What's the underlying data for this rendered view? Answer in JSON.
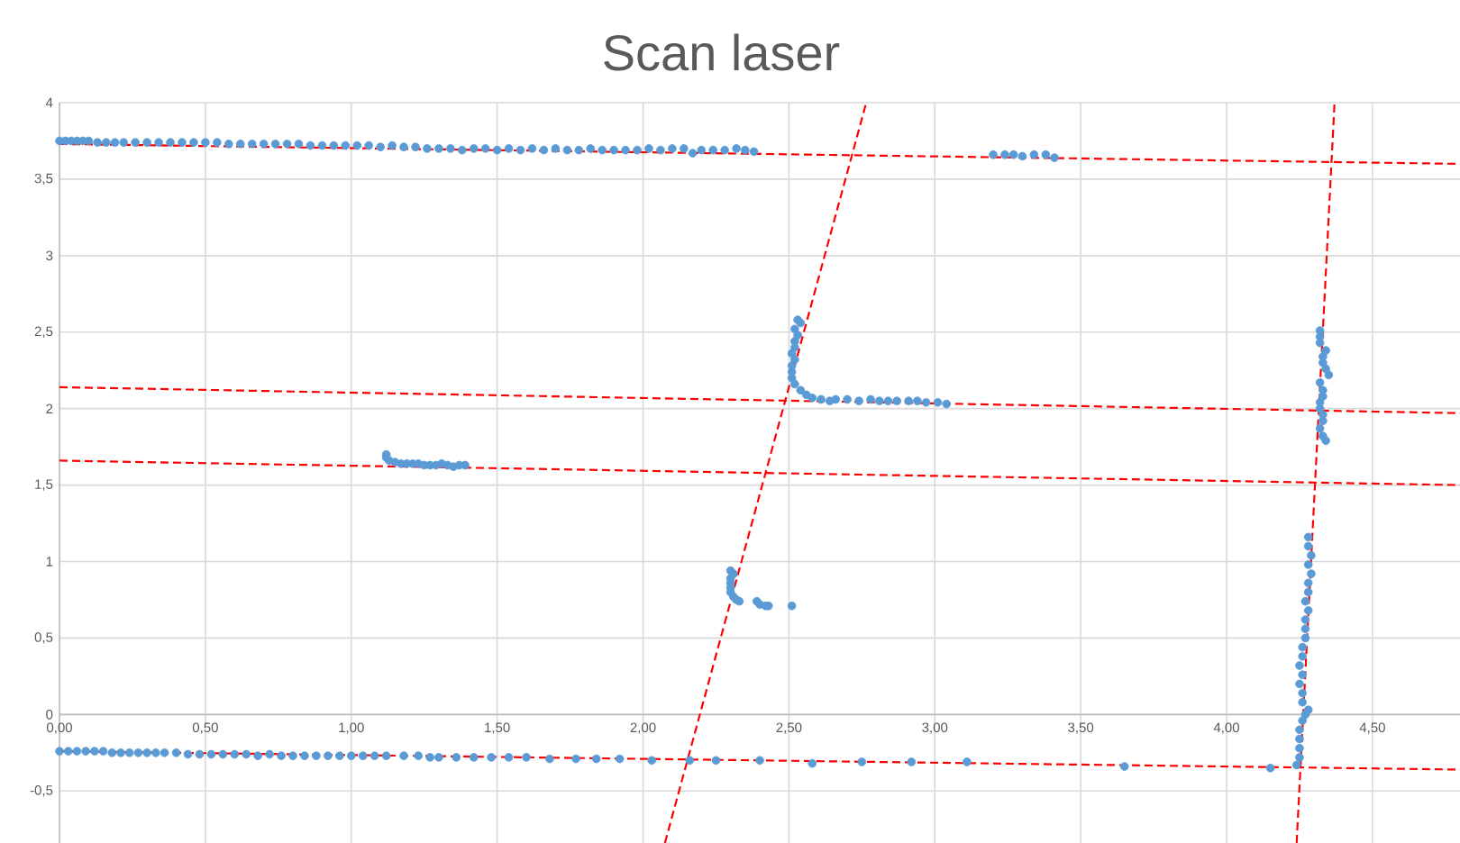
{
  "chart_data": {
    "type": "scatter",
    "title": "Scan laser",
    "xlim": [
      0,
      4.8
    ],
    "ylim": [
      -0.84,
      4
    ],
    "xticks": [
      {
        "value": 0,
        "label": "0,00"
      },
      {
        "value": 0.5,
        "label": "0,50"
      },
      {
        "value": 1,
        "label": "1,00"
      },
      {
        "value": 1.5,
        "label": "1,50"
      },
      {
        "value": 2,
        "label": "2,00"
      },
      {
        "value": 2.5,
        "label": "2,50"
      },
      {
        "value": 3,
        "label": "3,00"
      },
      {
        "value": 3.5,
        "label": "3,50"
      },
      {
        "value": 4,
        "label": "4,00"
      },
      {
        "value": 4.5,
        "label": "4,50"
      }
    ],
    "yticks": [
      {
        "value": -0.5,
        "label": "-0,5"
      },
      0,
      {
        "value": 0.5,
        "label": "0,5"
      },
      1,
      {
        "value": 1.5,
        "label": "1,5"
      },
      2,
      {
        "value": 2.5,
        "label": "2,5"
      },
      3,
      {
        "value": 3.5,
        "label": "3,5"
      },
      4
    ],
    "grid": true,
    "series": [
      {
        "color": "#5b9bd5",
        "marker": "circle",
        "x": [
          0.0,
          0.02,
          0.04,
          0.06,
          0.08,
          0.1,
          0.13,
          0.16,
          0.19,
          0.22,
          0.26,
          0.3,
          0.34,
          0.38,
          0.42,
          0.46,
          0.5,
          0.54,
          0.58,
          0.62,
          0.66,
          0.7,
          0.74,
          0.78,
          0.82,
          0.86,
          0.9,
          0.94,
          0.98,
          1.02,
          1.06,
          1.1,
          1.14,
          1.18,
          1.22,
          1.26,
          1.3,
          1.34,
          1.38,
          1.42,
          1.46,
          1.5,
          1.54,
          1.58,
          1.62,
          1.66,
          1.7,
          1.74,
          1.78,
          1.82,
          1.86,
          1.9,
          1.94,
          1.98,
          2.02,
          2.06,
          2.1,
          2.14,
          2.17,
          2.2,
          2.24,
          2.28,
          2.32,
          2.35,
          2.38,
          3.2,
          3.24,
          3.27,
          3.3,
          3.34,
          3.38,
          3.41,
          1.12,
          1.12,
          1.13,
          1.15,
          1.17,
          1.19,
          1.21,
          1.23,
          1.25,
          1.27,
          1.29,
          1.31,
          1.33,
          1.35,
          1.37,
          1.39,
          2.53,
          2.54,
          2.52,
          2.53,
          2.52,
          2.52,
          2.51,
          2.52,
          2.51,
          2.51,
          2.51,
          2.52,
          2.54,
          2.56,
          2.58,
          2.61,
          2.64,
          2.66,
          2.7,
          2.74,
          2.78,
          2.81,
          2.84,
          2.87,
          2.91,
          2.94,
          2.97,
          3.01,
          3.04,
          4.32,
          4.32,
          4.32,
          4.34,
          4.33,
          4.33,
          4.34,
          4.35,
          4.32,
          4.33,
          4.33,
          4.32,
          4.32,
          4.33,
          4.33,
          4.32,
          4.33,
          4.34,
          2.3,
          2.31,
          2.3,
          2.3,
          2.3,
          2.3,
          2.31,
          2.32,
          2.33,
          2.39,
          2.4,
          2.42,
          2.43,
          2.51,
          0.0,
          0.03,
          0.06,
          0.09,
          0.12,
          0.15,
          0.18,
          0.21,
          0.24,
          0.27,
          0.3,
          0.33,
          0.36,
          0.4,
          0.44,
          0.48,
          0.52,
          0.56,
          0.6,
          0.64,
          0.68,
          0.72,
          0.76,
          0.8,
          0.84,
          0.88,
          0.92,
          0.96,
          1.0,
          1.04,
          1.08,
          1.12,
          1.18,
          1.23,
          1.27,
          1.3,
          1.36,
          1.42,
          1.48,
          1.54,
          1.6,
          1.68,
          1.77,
          1.84,
          1.92,
          2.03,
          2.16,
          2.25,
          2.4,
          2.58,
          2.75,
          2.92,
          3.11,
          3.65,
          4.15,
          4.24,
          4.25,
          4.25,
          4.25,
          4.25,
          4.26,
          4.27,
          4.28,
          4.26,
          4.26,
          4.25,
          4.26,
          4.25,
          4.26,
          4.26,
          4.27,
          4.27,
          4.27,
          4.28,
          4.27,
          4.28,
          4.28,
          4.29,
          4.28,
          4.29,
          4.28,
          4.28
        ],
        "values": [
          3.75,
          3.75,
          3.75,
          3.75,
          3.75,
          3.75,
          3.74,
          3.74,
          3.74,
          3.74,
          3.74,
          3.74,
          3.74,
          3.74,
          3.74,
          3.74,
          3.74,
          3.74,
          3.73,
          3.73,
          3.73,
          3.73,
          3.73,
          3.73,
          3.73,
          3.72,
          3.72,
          3.72,
          3.72,
          3.72,
          3.72,
          3.71,
          3.72,
          3.71,
          3.71,
          3.7,
          3.7,
          3.7,
          3.69,
          3.7,
          3.7,
          3.69,
          3.7,
          3.69,
          3.7,
          3.69,
          3.7,
          3.69,
          3.69,
          3.7,
          3.69,
          3.69,
          3.69,
          3.69,
          3.7,
          3.69,
          3.7,
          3.7,
          3.67,
          3.69,
          3.69,
          3.69,
          3.7,
          3.69,
          3.68,
          3.66,
          3.66,
          3.66,
          3.65,
          3.66,
          3.66,
          3.64,
          1.7,
          1.68,
          1.66,
          1.65,
          1.64,
          1.64,
          1.64,
          1.64,
          1.63,
          1.63,
          1.63,
          1.64,
          1.63,
          1.62,
          1.63,
          1.63,
          2.58,
          2.56,
          2.52,
          2.48,
          2.44,
          2.4,
          2.36,
          2.32,
          2.28,
          2.24,
          2.2,
          2.16,
          2.12,
          2.09,
          2.07,
          2.06,
          2.05,
          2.06,
          2.06,
          2.05,
          2.06,
          2.05,
          2.05,
          2.05,
          2.05,
          2.05,
          2.04,
          2.04,
          2.03,
          2.51,
          2.47,
          2.43,
          2.38,
          2.34,
          2.3,
          2.26,
          2.22,
          2.17,
          2.12,
          2.08,
          2.04,
          2.0,
          1.96,
          1.92,
          1.87,
          1.82,
          1.79,
          0.94,
          0.92,
          0.89,
          0.86,
          0.83,
          0.8,
          0.77,
          0.75,
          0.74,
          0.74,
          0.72,
          0.71,
          0.71,
          0.71,
          -0.24,
          -0.24,
          -0.24,
          -0.24,
          -0.24,
          -0.24,
          -0.25,
          -0.25,
          -0.25,
          -0.25,
          -0.25,
          -0.25,
          -0.25,
          -0.25,
          -0.26,
          -0.26,
          -0.26,
          -0.26,
          -0.26,
          -0.26,
          -0.27,
          -0.26,
          -0.27,
          -0.27,
          -0.27,
          -0.27,
          -0.27,
          -0.27,
          -0.27,
          -0.27,
          -0.27,
          -0.27,
          -0.27,
          -0.27,
          -0.28,
          -0.28,
          -0.28,
          -0.28,
          -0.28,
          -0.28,
          -0.28,
          -0.29,
          -0.29,
          -0.29,
          -0.29,
          -0.3,
          -0.3,
          -0.3,
          -0.3,
          -0.32,
          -0.31,
          -0.31,
          -0.31,
          -0.34,
          -0.35,
          -0.33,
          -0.28,
          -0.22,
          -0.16,
          -0.1,
          -0.04,
          0.0,
          0.03,
          0.08,
          0.14,
          0.2,
          0.26,
          0.32,
          0.38,
          0.44,
          0.5,
          0.56,
          0.62,
          0.68,
          0.74,
          0.8,
          0.86,
          0.92,
          0.98,
          1.04,
          1.1,
          1.16
        ]
      },
      {
        "type": "line",
        "color": "#ff0000",
        "line_style": "dashed",
        "x": [
          0,
          4.8
        ],
        "values": [
          3.73,
          3.6
        ]
      },
      {
        "type": "line",
        "color": "#ff0000",
        "line_style": "dashed",
        "x": [
          0,
          4.8
        ],
        "values": [
          2.14,
          1.97
        ]
      },
      {
        "type": "line",
        "color": "#ff0000",
        "line_style": "dashed",
        "x": [
          0,
          4.8
        ],
        "values": [
          1.66,
          1.5
        ]
      },
      {
        "type": "line",
        "color": "#ff0000",
        "line_style": "dashed",
        "x": [
          0,
          4.8
        ],
        "values": [
          -0.24,
          -0.36
        ]
      },
      {
        "type": "line",
        "color": "#ff0000",
        "line_style": "dashed",
        "x": [
          2.075,
          2.765
        ],
        "values": [
          -0.84,
          4.0
        ]
      },
      {
        "type": "line",
        "color": "#ff0000",
        "line_style": "dashed",
        "x": [
          4.24,
          4.37
        ],
        "values": [
          -0.84,
          4.0
        ]
      }
    ]
  }
}
